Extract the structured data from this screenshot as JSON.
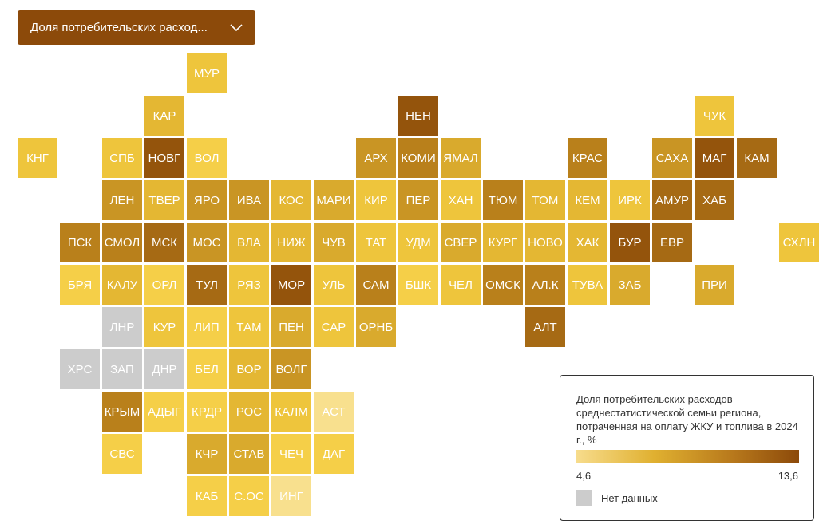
{
  "selector": {
    "label": "Доля потребительских расход...",
    "icon": "chevron-down-icon"
  },
  "legend": {
    "title": "Доля потребительских расходов среднестатистической семьи региона, потраченная на оплату ЖКУ и топлива в 2024 г., %",
    "min": "4,6",
    "max": "13,6",
    "no_data": "Нет данных",
    "scale_colors": [
      "#f7dc8c",
      "#e0b030",
      "#b8791c",
      "#8c4a0a"
    ],
    "no_data_color": "#cccccc"
  },
  "palette": {
    "1": "#f8e08e",
    "2": "#f5cf48",
    "3": "#eec53c",
    "4": "#e4b733",
    "5": "#d9aa2d",
    "6": "#c99524",
    "7": "#b9801b",
    "8": "#a66a14",
    "9": "#94540c",
    "nd": "#cccccc"
  },
  "regions": [
    {
      "label": "МУР",
      "col": 4,
      "row": 0,
      "level": 3
    },
    {
      "label": "КАР",
      "col": 3,
      "row": 1,
      "level": 4
    },
    {
      "label": "НЕН",
      "col": 9,
      "row": 1,
      "level": 9
    },
    {
      "label": "ЧУК",
      "col": 16,
      "row": 1,
      "level": 3
    },
    {
      "label": "КНГ",
      "col": 0,
      "row": 2,
      "level": 3
    },
    {
      "label": "СПБ",
      "col": 2,
      "row": 2,
      "level": 3
    },
    {
      "label": "НОВГ",
      "col": 3,
      "row": 2,
      "level": 9
    },
    {
      "label": "ВОЛ",
      "col": 4,
      "row": 2,
      "level": 2
    },
    {
      "label": "АРХ",
      "col": 8,
      "row": 2,
      "level": 6
    },
    {
      "label": "КОМИ",
      "col": 9,
      "row": 2,
      "level": 7
    },
    {
      "label": "ЯМАЛ",
      "col": 10,
      "row": 2,
      "level": 5
    },
    {
      "label": "КРАС",
      "col": 13,
      "row": 2,
      "level": 7
    },
    {
      "label": "САХА",
      "col": 15,
      "row": 2,
      "level": 6
    },
    {
      "label": "МАГ",
      "col": 16,
      "row": 2,
      "level": 9
    },
    {
      "label": "КАМ",
      "col": 17,
      "row": 2,
      "level": 8
    },
    {
      "label": "ЛЕН",
      "col": 2,
      "row": 3,
      "level": 6
    },
    {
      "label": "ТВЕР",
      "col": 3,
      "row": 3,
      "level": 4
    },
    {
      "label": "ЯРО",
      "col": 4,
      "row": 3,
      "level": 6
    },
    {
      "label": "ИВА",
      "col": 5,
      "row": 3,
      "level": 6
    },
    {
      "label": "КОС",
      "col": 6,
      "row": 3,
      "level": 4
    },
    {
      "label": "МАРИ",
      "col": 7,
      "row": 3,
      "level": 5
    },
    {
      "label": "КИР",
      "col": 8,
      "row": 3,
      "level": 3
    },
    {
      "label": "ПЕР",
      "col": 9,
      "row": 3,
      "level": 6
    },
    {
      "label": "ХАН",
      "col": 10,
      "row": 3,
      "level": 3
    },
    {
      "label": "ТЮМ",
      "col": 11,
      "row": 3,
      "level": 7
    },
    {
      "label": "ТОМ",
      "col": 12,
      "row": 3,
      "level": 4
    },
    {
      "label": "КЕМ",
      "col": 13,
      "row": 3,
      "level": 4
    },
    {
      "label": "ИРК",
      "col": 14,
      "row": 3,
      "level": 3
    },
    {
      "label": "АМУР",
      "col": 15,
      "row": 3,
      "level": 8
    },
    {
      "label": "ХАБ",
      "col": 16,
      "row": 3,
      "level": 8
    },
    {
      "label": "ПСК",
      "col": 1,
      "row": 4,
      "level": 7
    },
    {
      "label": "СМОЛ",
      "col": 2,
      "row": 4,
      "level": 7
    },
    {
      "label": "МСК",
      "col": 3,
      "row": 4,
      "level": 8
    },
    {
      "label": "МОС",
      "col": 4,
      "row": 4,
      "level": 6
    },
    {
      "label": "ВЛА",
      "col": 5,
      "row": 4,
      "level": 4
    },
    {
      "label": "НИЖ",
      "col": 6,
      "row": 4,
      "level": 4
    },
    {
      "label": "ЧУВ",
      "col": 7,
      "row": 4,
      "level": 5
    },
    {
      "label": "ТАТ",
      "col": 8,
      "row": 4,
      "level": 3
    },
    {
      "label": "УДМ",
      "col": 9,
      "row": 4,
      "level": 3
    },
    {
      "label": "СВЕР",
      "col": 10,
      "row": 4,
      "level": 5
    },
    {
      "label": "КУРГ",
      "col": 11,
      "row": 4,
      "level": 4
    },
    {
      "label": "НОВО",
      "col": 12,
      "row": 4,
      "level": 4
    },
    {
      "label": "ХАК",
      "col": 13,
      "row": 4,
      "level": 4
    },
    {
      "label": "БУР",
      "col": 14,
      "row": 4,
      "level": 9
    },
    {
      "label": "ЕВР",
      "col": 15,
      "row": 4,
      "level": 8
    },
    {
      "label": "СХЛН",
      "col": 18,
      "row": 4,
      "level": 3
    },
    {
      "label": "БРЯ",
      "col": 1,
      "row": 5,
      "level": 2
    },
    {
      "label": "КАЛУ",
      "col": 2,
      "row": 5,
      "level": 4
    },
    {
      "label": "ОРЛ",
      "col": 3,
      "row": 5,
      "level": 2
    },
    {
      "label": "ТУЛ",
      "col": 4,
      "row": 5,
      "level": 8
    },
    {
      "label": "РЯЗ",
      "col": 5,
      "row": 5,
      "level": 3
    },
    {
      "label": "МОР",
      "col": 6,
      "row": 5,
      "level": 9
    },
    {
      "label": "УЛЬ",
      "col": 7,
      "row": 5,
      "level": 3
    },
    {
      "label": "САМ",
      "col": 8,
      "row": 5,
      "level": 7
    },
    {
      "label": "БШК",
      "col": 9,
      "row": 5,
      "level": 2
    },
    {
      "label": "ЧЕЛ",
      "col": 10,
      "row": 5,
      "level": 3
    },
    {
      "label": "ОМСК",
      "col": 11,
      "row": 5,
      "level": 7
    },
    {
      "label": "АЛ.К",
      "col": 12,
      "row": 5,
      "level": 7
    },
    {
      "label": "ТУВА",
      "col": 13,
      "row": 5,
      "level": 3
    },
    {
      "label": "ЗАБ",
      "col": 14,
      "row": 5,
      "level": 5
    },
    {
      "label": "ПРИ",
      "col": 16,
      "row": 5,
      "level": 5
    },
    {
      "label": "ЛНР",
      "col": 2,
      "row": 6,
      "level": "nd"
    },
    {
      "label": "КУР",
      "col": 3,
      "row": 6,
      "level": 3
    },
    {
      "label": "ЛИП",
      "col": 4,
      "row": 6,
      "level": 2
    },
    {
      "label": "ТАМ",
      "col": 5,
      "row": 6,
      "level": 3
    },
    {
      "label": "ПЕН",
      "col": 6,
      "row": 6,
      "level": 5
    },
    {
      "label": "САР",
      "col": 7,
      "row": 6,
      "level": 3
    },
    {
      "label": "ОРНБ",
      "col": 8,
      "row": 6,
      "level": 5
    },
    {
      "label": "АЛТ",
      "col": 12,
      "row": 6,
      "level": 8
    },
    {
      "label": "ХРС",
      "col": 1,
      "row": 7,
      "level": "nd"
    },
    {
      "label": "ЗАП",
      "col": 2,
      "row": 7,
      "level": "nd"
    },
    {
      "label": "ДНР",
      "col": 3,
      "row": 7,
      "level": "nd"
    },
    {
      "label": "БЕЛ",
      "col": 4,
      "row": 7,
      "level": 2
    },
    {
      "label": "ВОР",
      "col": 5,
      "row": 7,
      "level": 4
    },
    {
      "label": "ВОЛГ",
      "col": 6,
      "row": 7,
      "level": 6
    },
    {
      "label": "КРЫМ",
      "col": 2,
      "row": 8,
      "level": 7
    },
    {
      "label": "АДЫГ",
      "col": 3,
      "row": 8,
      "level": 2
    },
    {
      "label": "КРДР",
      "col": 4,
      "row": 8,
      "level": 2
    },
    {
      "label": "РОС",
      "col": 5,
      "row": 8,
      "level": 4
    },
    {
      "label": "КАЛМ",
      "col": 6,
      "row": 8,
      "level": 3
    },
    {
      "label": "АСТ",
      "col": 7,
      "row": 8,
      "level": 1
    },
    {
      "label": "СВС",
      "col": 2,
      "row": 9,
      "level": 2
    },
    {
      "label": "КЧР",
      "col": 4,
      "row": 9,
      "level": 5
    },
    {
      "label": "СТАВ",
      "col": 5,
      "row": 9,
      "level": 5
    },
    {
      "label": "ЧЕЧ",
      "col": 6,
      "row": 9,
      "level": 2
    },
    {
      "label": "ДАГ",
      "col": 7,
      "row": 9,
      "level": 2
    },
    {
      "label": "КАБ",
      "col": 4,
      "row": 10,
      "level": 2
    },
    {
      "label": "С.ОС",
      "col": 5,
      "row": 10,
      "level": 2
    },
    {
      "label": "ИНГ",
      "col": 6,
      "row": 10,
      "level": 1
    }
  ]
}
